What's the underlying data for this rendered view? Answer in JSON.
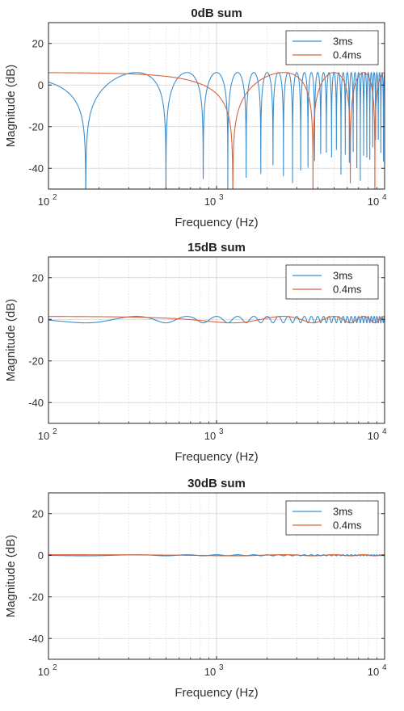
{
  "chart_data": [
    {
      "type": "line",
      "title": "0dB sum",
      "xlabel": "Frequency (Hz)",
      "ylabel": "Magnitude (dB)",
      "xscale": "log",
      "xlim": [
        100,
        10000
      ],
      "ylim": [
        -50,
        30
      ],
      "yticks": [
        20,
        0,
        -20,
        -40
      ],
      "xticks": [
        100,
        1000,
        10000
      ],
      "xtick_labels": [
        {
          "base": "10",
          "exp": "2"
        },
        {
          "base": "10",
          "exp": "3"
        },
        {
          "base": "10",
          "exp": "4"
        }
      ],
      "grid": true,
      "legend_position": "top-right",
      "level_ratio_db": 0,
      "series": [
        {
          "name": "3ms",
          "delay_ms": 3,
          "color": "#3b8fd0"
        },
        {
          "name": "0.4ms",
          "delay_ms": 0.4,
          "color": "#d9653b"
        }
      ]
    },
    {
      "type": "line",
      "title": "15dB sum",
      "xlabel": "Frequency (Hz)",
      "ylabel": "Magnitude (dB)",
      "xscale": "log",
      "xlim": [
        100,
        10000
      ],
      "ylim": [
        -50,
        30
      ],
      "yticks": [
        20,
        0,
        -20,
        -40
      ],
      "xticks": [
        100,
        1000,
        10000
      ],
      "xtick_labels": [
        {
          "base": "10",
          "exp": "2"
        },
        {
          "base": "10",
          "exp": "3"
        },
        {
          "base": "10",
          "exp": "4"
        }
      ],
      "grid": true,
      "legend_position": "top-right",
      "level_ratio_db": 15,
      "series": [
        {
          "name": "3ms",
          "delay_ms": 3,
          "color": "#3b8fd0"
        },
        {
          "name": "0.4ms",
          "delay_ms": 0.4,
          "color": "#d9653b"
        }
      ]
    },
    {
      "type": "line",
      "title": "30dB sum",
      "xlabel": "Frequency (Hz)",
      "ylabel": "Magnitude (dB)",
      "xscale": "log",
      "xlim": [
        100,
        10000
      ],
      "ylim": [
        -50,
        30
      ],
      "yticks": [
        20,
        0,
        -20,
        -40
      ],
      "xticks": [
        100,
        1000,
        10000
      ],
      "xtick_labels": [
        {
          "base": "10",
          "exp": "2"
        },
        {
          "base": "10",
          "exp": "3"
        },
        {
          "base": "10",
          "exp": "4"
        }
      ],
      "grid": true,
      "legend_position": "top-right",
      "level_ratio_db": 30,
      "series": [
        {
          "name": "3ms",
          "delay_ms": 3,
          "color": "#3b8fd0"
        },
        {
          "name": "0.4ms",
          "delay_ms": 0.4,
          "color": "#d9653b"
        }
      ]
    }
  ]
}
